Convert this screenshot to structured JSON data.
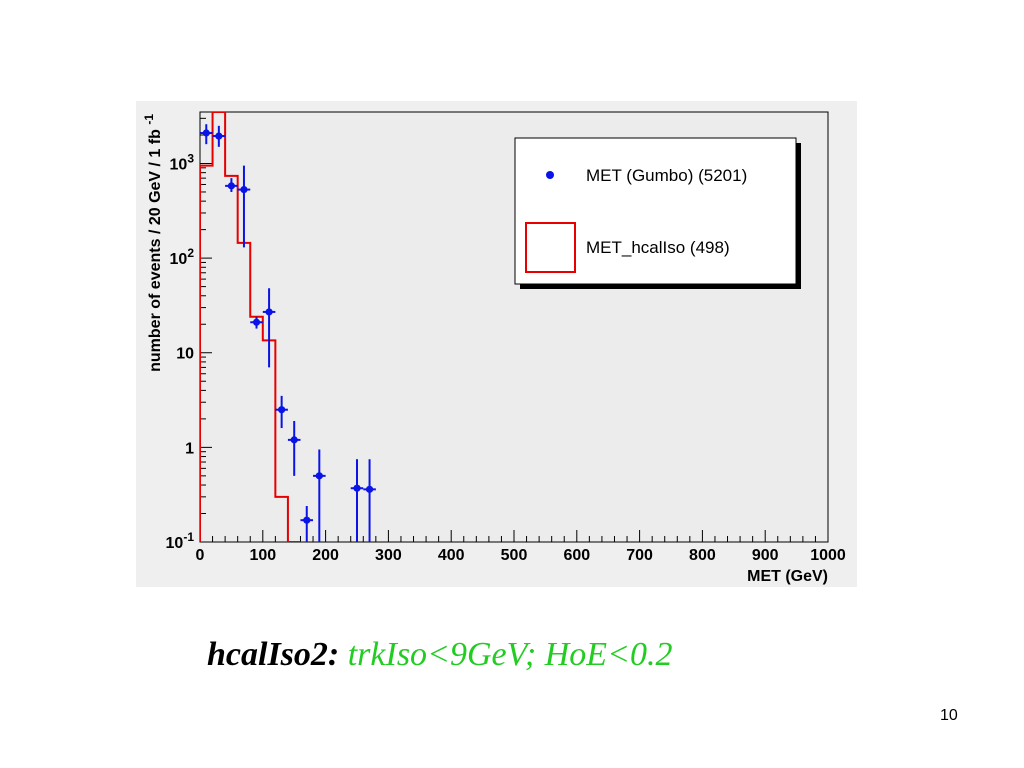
{
  "chart_data": {
    "type": "histogram",
    "x_label": "MET (GeV)",
    "y_label": "number of events / 20 GeV / 1 fb",
    "y_label_superscript": "-1",
    "x_range": [
      0,
      1000
    ],
    "y_range": [
      0.1,
      3500
    ],
    "y_scale": "log",
    "x_ticks": [
      "0",
      "100",
      "200",
      "300",
      "400",
      "500",
      "600",
      "700",
      "800",
      "900",
      "1000"
    ],
    "y_ticks": [
      {
        "value": 0.1,
        "base": "10",
        "exp": "-1"
      },
      {
        "value": 1,
        "base": "1",
        "exp": ""
      },
      {
        "value": 10,
        "base": "10",
        "exp": ""
      },
      {
        "value": 100,
        "base": "10",
        "exp": "2"
      },
      {
        "value": 1000,
        "base": "10",
        "exp": "3"
      }
    ],
    "legend_position": "top-right",
    "series": [
      {
        "name": "MET (Gumbo) (5201)",
        "style": "points-with-errors",
        "color": "#0a14e6",
        "points": [
          {
            "x": 10,
            "y": 2100,
            "lo": 1600,
            "hi": 2600
          },
          {
            "x": 30,
            "y": 1950,
            "lo": 1500,
            "hi": 2500
          },
          {
            "x": 50,
            "y": 580,
            "lo": 500,
            "hi": 700
          },
          {
            "x": 70,
            "y": 530,
            "lo": 130,
            "hi": 950
          },
          {
            "x": 90,
            "y": 21,
            "lo": 18,
            "hi": 24
          },
          {
            "x": 110,
            "y": 27,
            "lo": 7,
            "hi": 48
          },
          {
            "x": 130,
            "y": 2.5,
            "lo": 1.6,
            "hi": 3.5
          },
          {
            "x": 150,
            "y": 1.2,
            "lo": 0.5,
            "hi": 1.9
          },
          {
            "x": 170,
            "y": 0.17,
            "lo": 0.1,
            "hi": 0.24
          },
          {
            "x": 190,
            "y": 0.5,
            "lo": 0.1,
            "hi": 0.95
          },
          {
            "x": 250,
            "y": 0.37,
            "lo": 0.1,
            "hi": 0.75
          },
          {
            "x": 270,
            "y": 0.36,
            "lo": 0.1,
            "hi": 0.75
          }
        ]
      },
      {
        "name": "MET_hcalIso (498)",
        "style": "step",
        "color": "#e60000",
        "bin_width": 20,
        "bins": [
          {
            "x0": 0,
            "y": 950
          },
          {
            "x0": 20,
            "y": 3500
          },
          {
            "x0": 40,
            "y": 740
          },
          {
            "x0": 60,
            "y": 145
          },
          {
            "x0": 80,
            "y": 24
          },
          {
            "x0": 100,
            "y": 13.5
          },
          {
            "x0": 120,
            "y": 0.3
          },
          {
            "x0": 140,
            "y": 0.1
          }
        ]
      }
    ]
  },
  "caption": {
    "label": "hcalIso2:",
    "condition": "trkIso<9GeV; HoE<0.2"
  },
  "page_number": "10"
}
